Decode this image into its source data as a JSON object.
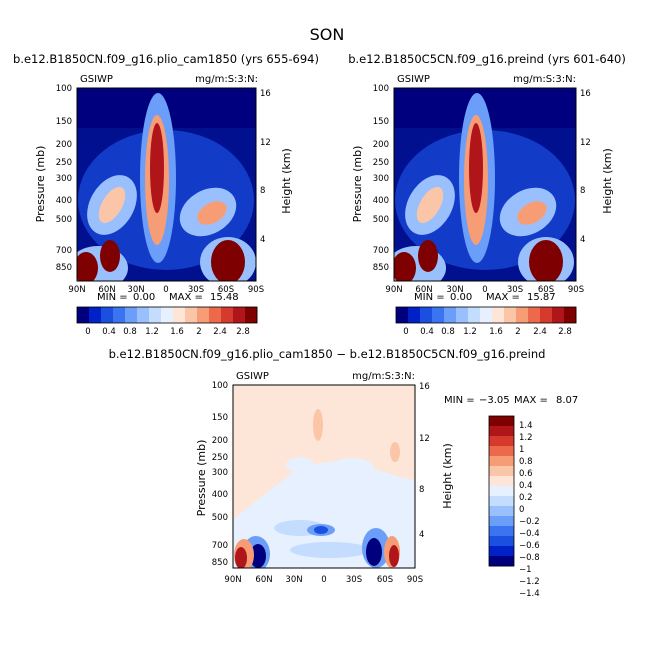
{
  "figure": {
    "title": "SON",
    "colorbar_pos_colors": [
      "#00007f",
      "#0020c8",
      "#1a4fe0",
      "#3a74f0",
      "#6a9ef8",
      "#99c0fc",
      "#c4dcfd",
      "#e6f0fe",
      "#fde6d8",
      "#fbc6a8",
      "#f79d76",
      "#ec6a4b",
      "#d63a2d",
      "#b0151a",
      "#7f0000"
    ],
    "colorbar_diff_colors": [
      "#00007f",
      "#0020c8",
      "#1a4fe0",
      "#3a74f0",
      "#6a9ef8",
      "#99c0fc",
      "#c4dcfd",
      "#e6f0fe",
      "#fde6d8",
      "#fbc6a8",
      "#f79d76",
      "#ec6a4b",
      "#d63a2d",
      "#b0151a",
      "#7f0000"
    ]
  },
  "chart_data": [
    {
      "type": "heatmap",
      "title": "b.e12.B1850CN.f09_g16.plio_cam1850 (yrs 655-694)",
      "corner_left": "GSIWP",
      "corner_right": "mg/m:S:3:N:",
      "xlabel": "",
      "ylabel": "Pressure (mb)",
      "ylabel_right": "Height (km)",
      "x_ticks": [
        "90N",
        "60N",
        "30N",
        "0",
        "30S",
        "60S",
        "90S"
      ],
      "y_ticks": [
        "100",
        "150",
        "200",
        "250",
        "300",
        "400",
        "500",
        "700",
        "850"
      ],
      "y_ticks_right": [
        "16",
        "12",
        "8",
        "4"
      ],
      "min_label": "MIN =",
      "min_value": "0.00",
      "max_label": "MAX =",
      "max_value": "15.48",
      "colorbar_labels": [
        "0",
        "0.4",
        "0.8",
        "1.2",
        "1.6",
        "2",
        "2.4",
        "2.8"
      ],
      "ylim": [
        100,
        850
      ],
      "xlim": [
        -90,
        90
      ]
    },
    {
      "type": "heatmap",
      "title": "b.e12.B1850C5CN.f09_g16.preind (yrs 601-640)",
      "corner_left": "GSIWP",
      "corner_right": "mg/m:S:3:N:",
      "xlabel": "",
      "ylabel": "Pressure (mb)",
      "ylabel_right": "Height (km)",
      "x_ticks": [
        "90N",
        "60N",
        "30N",
        "0",
        "30S",
        "60S",
        "90S"
      ],
      "y_ticks": [
        "100",
        "150",
        "200",
        "250",
        "300",
        "400",
        "500",
        "700",
        "850"
      ],
      "y_ticks_right": [
        "16",
        "12",
        "8",
        "4"
      ],
      "min_label": "MIN =",
      "min_value": "0.00",
      "max_label": "MAX =",
      "max_value": "15.87",
      "colorbar_labels": [
        "0",
        "0.4",
        "0.8",
        "1.2",
        "1.6",
        "2",
        "2.4",
        "2.8"
      ],
      "ylim": [
        100,
        850
      ],
      "xlim": [
        -90,
        90
      ]
    },
    {
      "type": "heatmap",
      "title": "b.e12.B1850CN.f09_g16.plio_cam1850 − b.e12.B1850C5CN.f09_g16.preind",
      "corner_left": "GSIWP",
      "corner_right": "mg/m:S:3:N:",
      "xlabel": "",
      "ylabel": "Pressure (mb)",
      "ylabel_right": "Height (km)",
      "x_ticks": [
        "90N",
        "60N",
        "30N",
        "0",
        "30S",
        "60S",
        "90S"
      ],
      "y_ticks": [
        "100",
        "150",
        "200",
        "250",
        "300",
        "400",
        "500",
        "700",
        "850"
      ],
      "y_ticks_right": [
        "16",
        "12",
        "8",
        "4"
      ],
      "min_label": "MIN =",
      "min_value": "−3.05",
      "max_label": "MAX =",
      "max_value": "8.07",
      "colorbar_labels": [
        "1.4",
        "1.2",
        "1",
        "0.8",
        "0.6",
        "0.4",
        "0.2",
        "0",
        "−0.2",
        "−0.4",
        "−0.6",
        "−0.8",
        "−1",
        "−1.2",
        "−1.4"
      ],
      "ylim": [
        100,
        850
      ],
      "xlim": [
        -90,
        90
      ]
    }
  ]
}
